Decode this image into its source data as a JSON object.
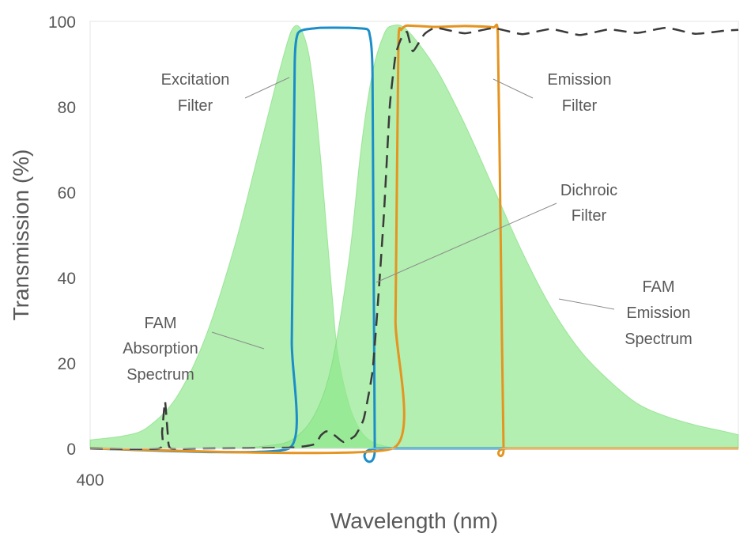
{
  "chart_data": {
    "type": "area",
    "xlabel": "Wavelength (nm)",
    "ylabel": "Transmission (%)",
    "xlim": [
      400,
      625
    ],
    "ylim": [
      0,
      100
    ],
    "x_tick_labels": [
      "400"
    ],
    "y_ticks": [
      0,
      20,
      40,
      60,
      80,
      100
    ],
    "grid": false,
    "legend": "none",
    "series": [
      {
        "type": "area",
        "color": "#8de88a",
        "x": [
          400,
          412,
          420,
          430,
          440,
          450,
          458,
          464,
          468,
          470,
          472,
          474,
          476,
          478,
          480,
          482,
          484,
          486,
          490,
          494,
          498,
          502,
          505,
          508
        ],
        "y": [
          2,
          3,
          5,
          12,
          26,
          47,
          68,
          84,
          94,
          98,
          99,
          97,
          92,
          82,
          68,
          52,
          36,
          22,
          10,
          4,
          1.5,
          0.6,
          0.2,
          0
        ]
      },
      {
        "type": "area",
        "color": "#8de88a",
        "x": [
          450,
          460,
          470,
          478,
          484,
          490,
          494,
          498,
          502,
          505,
          510,
          520,
          530,
          540,
          550,
          560,
          570,
          580,
          590,
          600,
          610,
          620,
          625
        ],
        "y": [
          0,
          0.5,
          2,
          8,
          20,
          45,
          70,
          88,
          97,
          99,
          98,
          89,
          76,
          61,
          46,
          33,
          23,
          16,
          10.5,
          7.5,
          5.5,
          4,
          3.2
        ]
      },
      {
        "type": "line",
        "color": "#1b8ec9",
        "x": [
          400,
          469,
          470,
          471,
          472,
          474,
          480,
          490,
          496,
          497,
          498,
          498.8,
          500,
          625
        ],
        "y": [
          0,
          0,
          25,
          90,
          97,
          98,
          98.5,
          98.5,
          98.2,
          97,
          88,
          0,
          0,
          0
        ]
      },
      {
        "type": "line",
        "color": "#e59420",
        "x": [
          400,
          505,
          506,
          507,
          508,
          510,
          520,
          530,
          540,
          541.5,
          542.5,
          543.5,
          545,
          625
        ],
        "y": [
          0,
          0,
          30,
          95,
          98,
          99,
          98.7,
          98.9,
          98.6,
          97,
          50,
          0,
          0,
          0
        ]
      },
      {
        "type": "line",
        "color": "#3a3a3a",
        "dashed": true,
        "x": [
          400,
          424,
          425,
          426,
          427,
          428,
          440,
          470,
          478,
          480,
          482,
          485,
          488,
          492,
          495,
          498,
          500,
          502,
          504,
          506,
          508,
          510,
          512,
          516,
          520,
          530,
          540,
          550,
          560,
          570,
          580,
          590,
          600,
          610,
          620,
          625
        ],
        "y": [
          0,
          0,
          4,
          11,
          3,
          0,
          0,
          0.2,
          1,
          3,
          4,
          3,
          1.5,
          3,
          7,
          18,
          35,
          55,
          80,
          92,
          96,
          97.5,
          93,
          97,
          98.5,
          97.2,
          98.4,
          97,
          98.2,
          96.8,
          98.1,
          97.3,
          98.5,
          97.1,
          97.8,
          98
        ]
      }
    ],
    "annotations": [
      {
        "lines": [
          "Excitation",
          "Filter"
        ]
      },
      {
        "lines": [
          "Emission",
          "Filter"
        ]
      },
      {
        "lines": [
          "Dichroic",
          "Filter"
        ]
      },
      {
        "lines": [
          "FAM",
          "Emission",
          "Spectrum"
        ]
      },
      {
        "lines": [
          "FAM",
          "Absorption",
          "Spectrum"
        ]
      }
    ]
  }
}
